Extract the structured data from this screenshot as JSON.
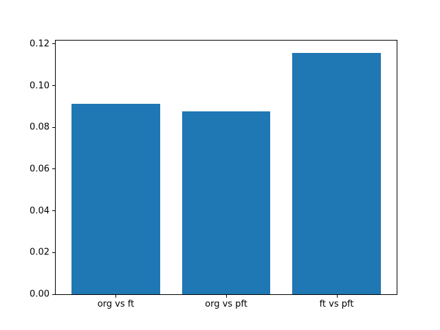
{
  "figure": {
    "background_color": "#ffffff",
    "spine_color": "#000000",
    "text_color": "#000000"
  },
  "chart_data": {
    "type": "bar",
    "title": "",
    "xlabel": "",
    "ylabel": "",
    "categories": [
      "org vs ft",
      "org vs pft",
      "ft vs pft"
    ],
    "values": [
      0.0912,
      0.0876,
      0.1158
    ],
    "bar_color": "#1f77b4",
    "bar_width": 0.8,
    "xlim": [
      -0.545,
      2.545
    ],
    "ylim": [
      0,
      0.1216
    ],
    "yticks": [
      0.0,
      0.02,
      0.04,
      0.06,
      0.08,
      0.1,
      0.12
    ],
    "ytick_labels": [
      "0.00",
      "0.02",
      "0.04",
      "0.06",
      "0.08",
      "0.10",
      "0.12"
    ],
    "grid": false,
    "legend": null
  }
}
